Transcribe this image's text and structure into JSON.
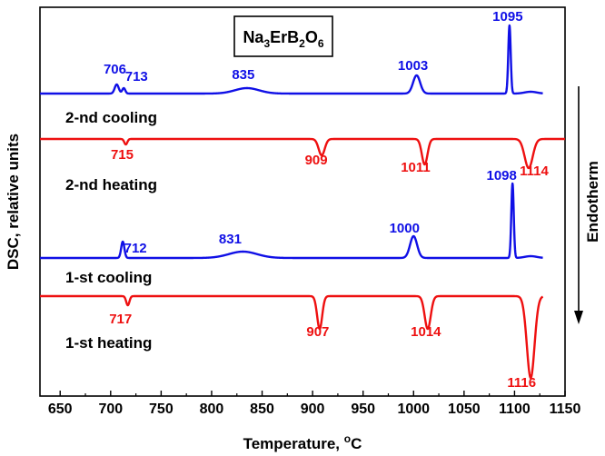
{
  "chart_data": {
    "type": "line",
    "title": "",
    "xlabel": "Temperature, °C",
    "xlabel_main": "Temperature, ",
    "xlabel_deg": "o",
    "xlabel_unit": "C",
    "ylabel": "DSC, relative units",
    "xlim": [
      630,
      1150
    ],
    "xticks": [
      "650",
      "700",
      "750",
      "800",
      "850",
      "900",
      "950",
      "1000",
      "1050",
      "1100",
      "1150"
    ],
    "yticks_shown": false,
    "grid": false,
    "compound": {
      "text": "Na3ErB2O6",
      "parts": [
        "Na",
        "3",
        "Er",
        "B",
        "2",
        "O",
        "6"
      ]
    },
    "endotherm_label": "Endotherm",
    "endotherm_direction": "down",
    "colors": {
      "cooling": "#1010e6",
      "heating": "#ee1010",
      "axis": "#000000"
    },
    "series": [
      {
        "name": "2-nd cooling",
        "kind": "cooling",
        "color": "#1010e6",
        "x_range": [
          630,
          1128
        ],
        "peaks": [
          {
            "x": 706,
            "depth": 10,
            "width": 2.0,
            "label": "706"
          },
          {
            "x": 713,
            "depth": 6,
            "width": 1.5,
            "label": "713"
          },
          {
            "x": 835,
            "depth": 6,
            "width": 12,
            "label": "835"
          },
          {
            "x": 1003,
            "depth": 20,
            "width": 3.5,
            "label": "1003"
          },
          {
            "x": 1095,
            "depth": 75,
            "width": 1.2,
            "label": "1095"
          }
        ]
      },
      {
        "name": "2-nd heating",
        "kind": "heating",
        "color": "#ee1010",
        "x_range": [
          630,
          1150
        ],
        "peaks": [
          {
            "x": 715,
            "depth": 6,
            "width": 1.5,
            "label": "715"
          },
          {
            "x": 909,
            "depth": 18,
            "width": 3.0,
            "label": "909"
          },
          {
            "x": 1011,
            "depth": 28,
            "width": 2.8,
            "label": "1011"
          },
          {
            "x": 1114,
            "depth": 32,
            "width": 4.0,
            "label": "1114"
          }
        ]
      },
      {
        "name": "1-st cooling",
        "kind": "cooling",
        "color": "#1010e6",
        "x_range": [
          630,
          1128
        ],
        "peaks": [
          {
            "x": 712,
            "depth": 18,
            "width": 1.6,
            "label": "712"
          },
          {
            "x": 831,
            "depth": 7,
            "width": 14,
            "label": "831"
          },
          {
            "x": 1000,
            "depth": 24,
            "width": 3.5,
            "label": "1000"
          },
          {
            "x": 1098,
            "depth": 82,
            "width": 1.2,
            "label": "1098"
          }
        ]
      },
      {
        "name": "1-st heating",
        "kind": "heating",
        "color": "#ee1010",
        "x_range": [
          630,
          1128
        ],
        "peaks": [
          {
            "x": 717,
            "depth": 10,
            "width": 1.6,
            "label": "717"
          },
          {
            "x": 907,
            "depth": 36,
            "width": 2.5,
            "label": "907"
          },
          {
            "x": 1014,
            "depth": 36,
            "width": 3.0,
            "label": "1014"
          },
          {
            "x": 1116,
            "depth": 90,
            "width": 3.8,
            "label": "1116"
          }
        ]
      }
    ]
  }
}
